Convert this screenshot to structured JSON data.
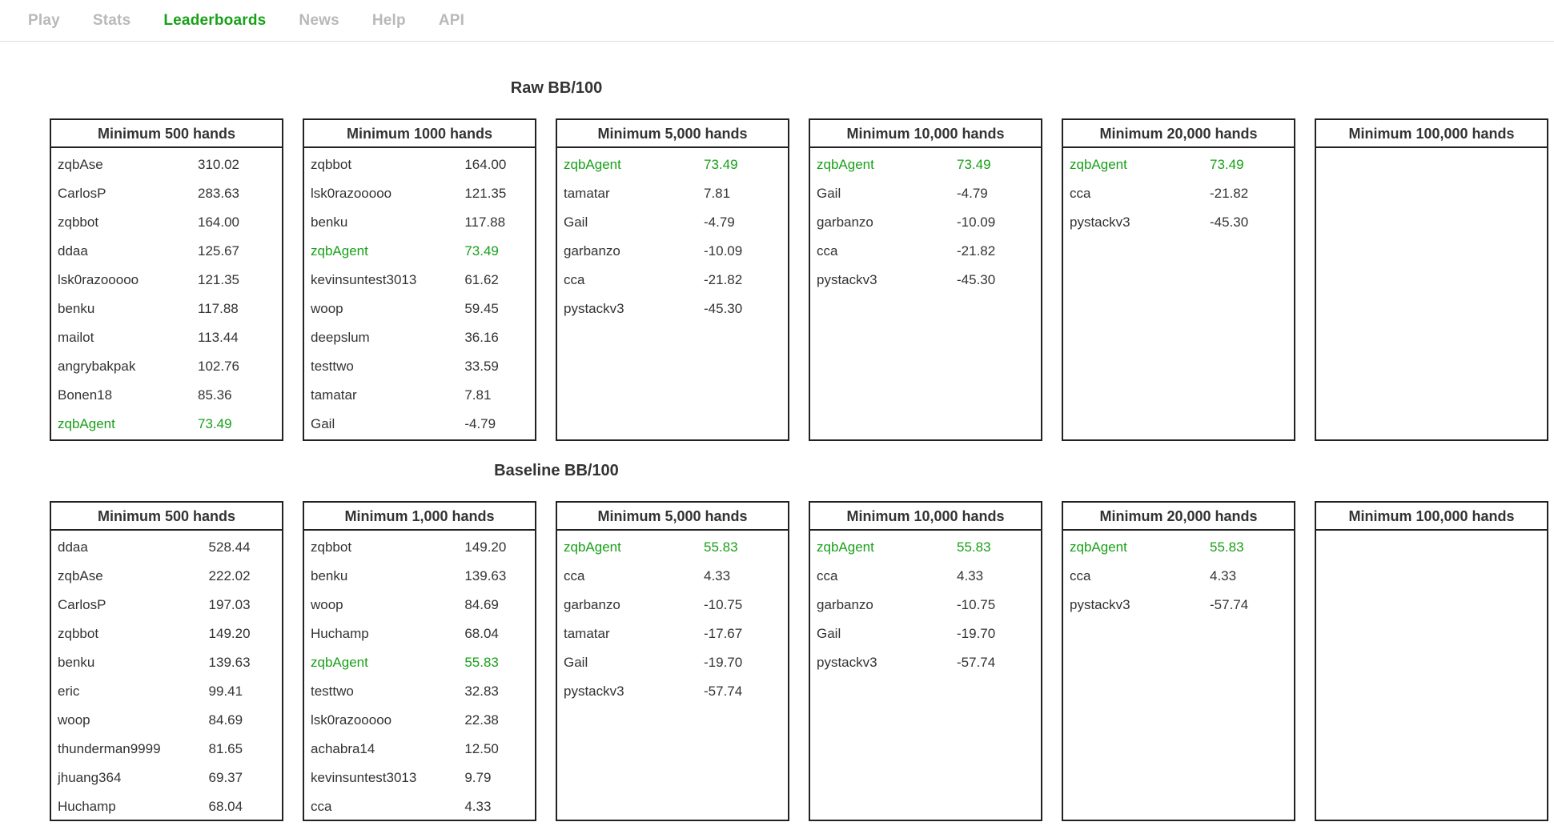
{
  "nav": {
    "items": [
      {
        "label": "Play",
        "active": false
      },
      {
        "label": "Stats",
        "active": false
      },
      {
        "label": "Leaderboards",
        "active": true
      },
      {
        "label": "News",
        "active": false
      },
      {
        "label": "Help",
        "active": false
      },
      {
        "label": "API",
        "active": false
      }
    ]
  },
  "colors": {
    "accent_green": "#18a018",
    "nav_inactive_gray": "#b9b9b9",
    "text": "#333333",
    "box_border": "#222222",
    "nav_divider": "#dddddd"
  },
  "sections": [
    {
      "title": "Raw BB/100",
      "boards": [
        {
          "title": "Minimum 500 hands",
          "rows": [
            {
              "name": "zqbAse",
              "value": "310.02",
              "highlight": false
            },
            {
              "name": "CarlosP",
              "value": "283.63",
              "highlight": false
            },
            {
              "name": "zqbbot",
              "value": "164.00",
              "highlight": false
            },
            {
              "name": "ddaa",
              "value": "125.67",
              "highlight": false
            },
            {
              "name": "lsk0razooooo",
              "value": "121.35",
              "highlight": false
            },
            {
              "name": "benku",
              "value": "117.88",
              "highlight": false
            },
            {
              "name": "mailot",
              "value": "113.44",
              "highlight": false
            },
            {
              "name": "angrybakpak",
              "value": "102.76",
              "highlight": false
            },
            {
              "name": "Bonen18",
              "value": "85.36",
              "highlight": false
            },
            {
              "name": "zqbAgent",
              "value": "73.49",
              "highlight": true
            }
          ]
        },
        {
          "title": "Minimum 1000 hands",
          "rows": [
            {
              "name": "zqbbot",
              "value": "164.00",
              "highlight": false
            },
            {
              "name": "lsk0razooooo",
              "value": "121.35",
              "highlight": false
            },
            {
              "name": "benku",
              "value": "117.88",
              "highlight": false
            },
            {
              "name": "zqbAgent",
              "value": "73.49",
              "highlight": true
            },
            {
              "name": "kevinsuntest3013",
              "value": "61.62",
              "highlight": false
            },
            {
              "name": "woop",
              "value": "59.45",
              "highlight": false
            },
            {
              "name": "deepslum",
              "value": "36.16",
              "highlight": false
            },
            {
              "name": "testtwo",
              "value": "33.59",
              "highlight": false
            },
            {
              "name": "tamatar",
              "value": "7.81",
              "highlight": false
            },
            {
              "name": "Gail",
              "value": "-4.79",
              "highlight": false
            }
          ]
        },
        {
          "title": "Minimum 5,000 hands",
          "rows": [
            {
              "name": "zqbAgent",
              "value": "73.49",
              "highlight": true
            },
            {
              "name": "tamatar",
              "value": "7.81",
              "highlight": false
            },
            {
              "name": "Gail",
              "value": "-4.79",
              "highlight": false
            },
            {
              "name": "garbanzo",
              "value": "-10.09",
              "highlight": false
            },
            {
              "name": "cca",
              "value": "-21.82",
              "highlight": false
            },
            {
              "name": "pystackv3",
              "value": "-45.30",
              "highlight": false
            }
          ]
        },
        {
          "title": "Minimum 10,000 hands",
          "rows": [
            {
              "name": "zqbAgent",
              "value": "73.49",
              "highlight": true
            },
            {
              "name": "Gail",
              "value": "-4.79",
              "highlight": false
            },
            {
              "name": "garbanzo",
              "value": "-10.09",
              "highlight": false
            },
            {
              "name": "cca",
              "value": "-21.82",
              "highlight": false
            },
            {
              "name": "pystackv3",
              "value": "-45.30",
              "highlight": false
            }
          ]
        },
        {
          "title": "Minimum 20,000 hands",
          "rows": [
            {
              "name": "zqbAgent",
              "value": "73.49",
              "highlight": true
            },
            {
              "name": "cca",
              "value": "-21.82",
              "highlight": false
            },
            {
              "name": "pystackv3",
              "value": "-45.30",
              "highlight": false
            }
          ]
        },
        {
          "title": "Minimum 100,000 hands",
          "rows": []
        }
      ]
    },
    {
      "title": "Baseline BB/100",
      "boards": [
        {
          "title": "Minimum 500 hands",
          "rows": [
            {
              "name": "ddaa",
              "value": "528.44",
              "highlight": false
            },
            {
              "name": "zqbAse",
              "value": "222.02",
              "highlight": false
            },
            {
              "name": "CarlosP",
              "value": "197.03",
              "highlight": false
            },
            {
              "name": "zqbbot",
              "value": "149.20",
              "highlight": false
            },
            {
              "name": "benku",
              "value": "139.63",
              "highlight": false
            },
            {
              "name": "eric",
              "value": "99.41",
              "highlight": false
            },
            {
              "name": "woop",
              "value": "84.69",
              "highlight": false
            },
            {
              "name": "thunderman9999",
              "value": "81.65",
              "highlight": false
            },
            {
              "name": "jhuang364",
              "value": "69.37",
              "highlight": false
            },
            {
              "name": "Huchamp",
              "value": "68.04",
              "highlight": false
            }
          ]
        },
        {
          "title": "Minimum 1,000 hands",
          "rows": [
            {
              "name": "zqbbot",
              "value": "149.20",
              "highlight": false
            },
            {
              "name": "benku",
              "value": "139.63",
              "highlight": false
            },
            {
              "name": "woop",
              "value": "84.69",
              "highlight": false
            },
            {
              "name": "Huchamp",
              "value": "68.04",
              "highlight": false
            },
            {
              "name": "zqbAgent",
              "value": "55.83",
              "highlight": true
            },
            {
              "name": "testtwo",
              "value": "32.83",
              "highlight": false
            },
            {
              "name": "lsk0razooooo",
              "value": "22.38",
              "highlight": false
            },
            {
              "name": "achabra14",
              "value": "12.50",
              "highlight": false
            },
            {
              "name": "kevinsuntest3013",
              "value": "9.79",
              "highlight": false
            },
            {
              "name": "cca",
              "value": "4.33",
              "highlight": false
            }
          ]
        },
        {
          "title": "Minimum 5,000 hands",
          "rows": [
            {
              "name": "zqbAgent",
              "value": "55.83",
              "highlight": true
            },
            {
              "name": "cca",
              "value": "4.33",
              "highlight": false
            },
            {
              "name": "garbanzo",
              "value": "-10.75",
              "highlight": false
            },
            {
              "name": "tamatar",
              "value": "-17.67",
              "highlight": false
            },
            {
              "name": "Gail",
              "value": "-19.70",
              "highlight": false
            },
            {
              "name": "pystackv3",
              "value": "-57.74",
              "highlight": false
            }
          ]
        },
        {
          "title": "Minimum 10,000 hands",
          "rows": [
            {
              "name": "zqbAgent",
              "value": "55.83",
              "highlight": true
            },
            {
              "name": "cca",
              "value": "4.33",
              "highlight": false
            },
            {
              "name": "garbanzo",
              "value": "-10.75",
              "highlight": false
            },
            {
              "name": "Gail",
              "value": "-19.70",
              "highlight": false
            },
            {
              "name": "pystackv3",
              "value": "-57.74",
              "highlight": false
            }
          ]
        },
        {
          "title": "Minimum 20,000 hands",
          "rows": [
            {
              "name": "zqbAgent",
              "value": "55.83",
              "highlight": true
            },
            {
              "name": "cca",
              "value": "4.33",
              "highlight": false
            },
            {
              "name": "pystackv3",
              "value": "-57.74",
              "highlight": false
            }
          ]
        },
        {
          "title": "Minimum 100,000 hands",
          "rows": []
        }
      ]
    }
  ]
}
